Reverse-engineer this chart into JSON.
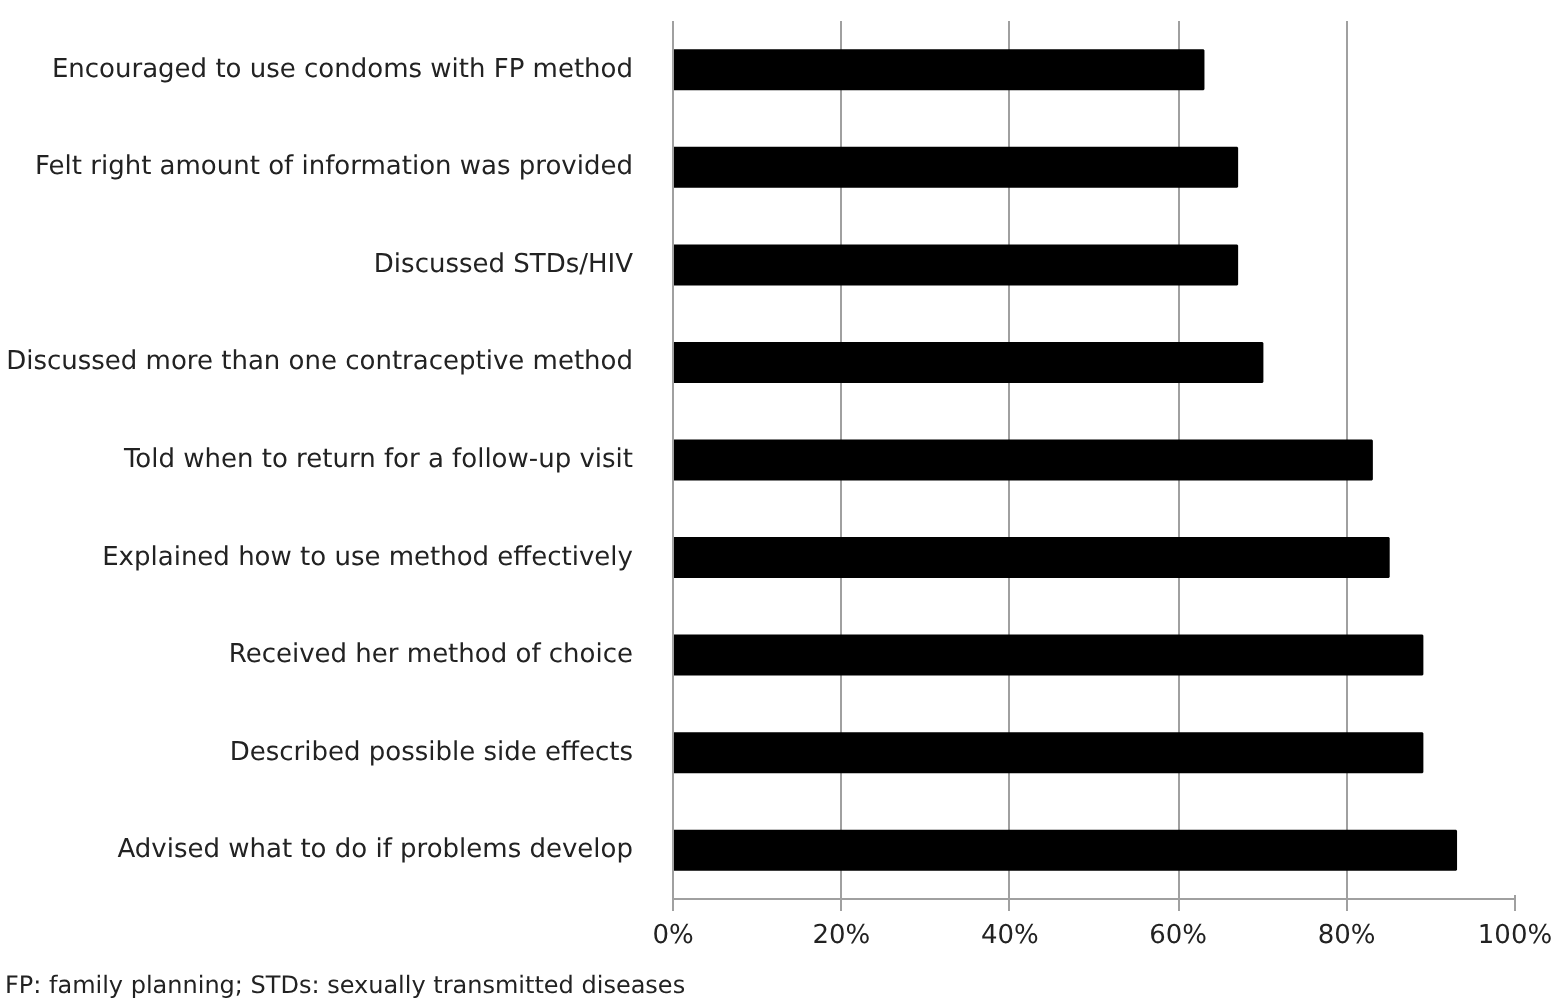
{
  "chart_data": {
    "type": "bar",
    "orientation": "horizontal",
    "categories": [
      "Encouraged to use condoms with FP method",
      "Felt right amount of information was provided",
      "Discussed STDs/HIV",
      "Discussed more than one contraceptive method",
      "Told when to return for a follow-up visit",
      "Explained how to use method effectively",
      "Received her method of choice",
      "Described possible side effects",
      "Advised what to do if problems develop"
    ],
    "values": [
      63,
      67,
      67,
      70,
      83,
      85,
      89,
      89,
      93
    ],
    "color": "#000000",
    "xlim": [
      0,
      100
    ],
    "xticks": [
      {
        "value": 0,
        "label": "0%"
      },
      {
        "value": 20,
        "label": "20%"
      },
      {
        "value": 40,
        "label": "40%"
      },
      {
        "value": 60,
        "label": "60%"
      },
      {
        "value": 80,
        "label": "80%"
      },
      {
        "value": 100,
        "label": "100%"
      }
    ],
    "grid": "x",
    "annotations": [
      "FP: family planning; STDs: sexually transmitted diseases"
    ]
  }
}
